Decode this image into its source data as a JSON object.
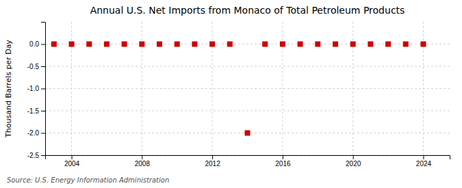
{
  "chart_data": {
    "type": "scatter",
    "title": "Annual U.S. Net Imports from Monaco of Total Petroleum Products",
    "ylabel": "Thousand Barrels per Day",
    "source": "Source: U.S. Energy Information Administration",
    "x": [
      2003,
      2004,
      2005,
      2006,
      2007,
      2008,
      2009,
      2010,
      2011,
      2012,
      2013,
      2014,
      2015,
      2016,
      2017,
      2018,
      2019,
      2020,
      2021,
      2022,
      2023,
      2024
    ],
    "values": [
      0,
      0,
      0,
      0,
      0,
      0,
      0,
      0,
      0,
      0,
      0,
      -2.0,
      0,
      0,
      0,
      0,
      0,
      0,
      0,
      0,
      0,
      0
    ],
    "color": "#cc0000",
    "marker": "square",
    "xlim": [
      2002.5,
      2025.5
    ],
    "xticks": [
      2004,
      2008,
      2012,
      2016,
      2020,
      2024
    ],
    "ylim": [
      -2.5,
      0.5
    ],
    "yticks": [
      {
        "value": 0.0,
        "label": "0.0"
      },
      {
        "value": -0.5,
        "label": "-0.5"
      },
      {
        "value": -1.0,
        "label": "-1.0"
      },
      {
        "value": -1.5,
        "label": "-1.5"
      },
      {
        "value": -2.0,
        "label": "-2.0"
      },
      {
        "value": -2.5,
        "label": "-2.5"
      }
    ],
    "grid": true
  }
}
